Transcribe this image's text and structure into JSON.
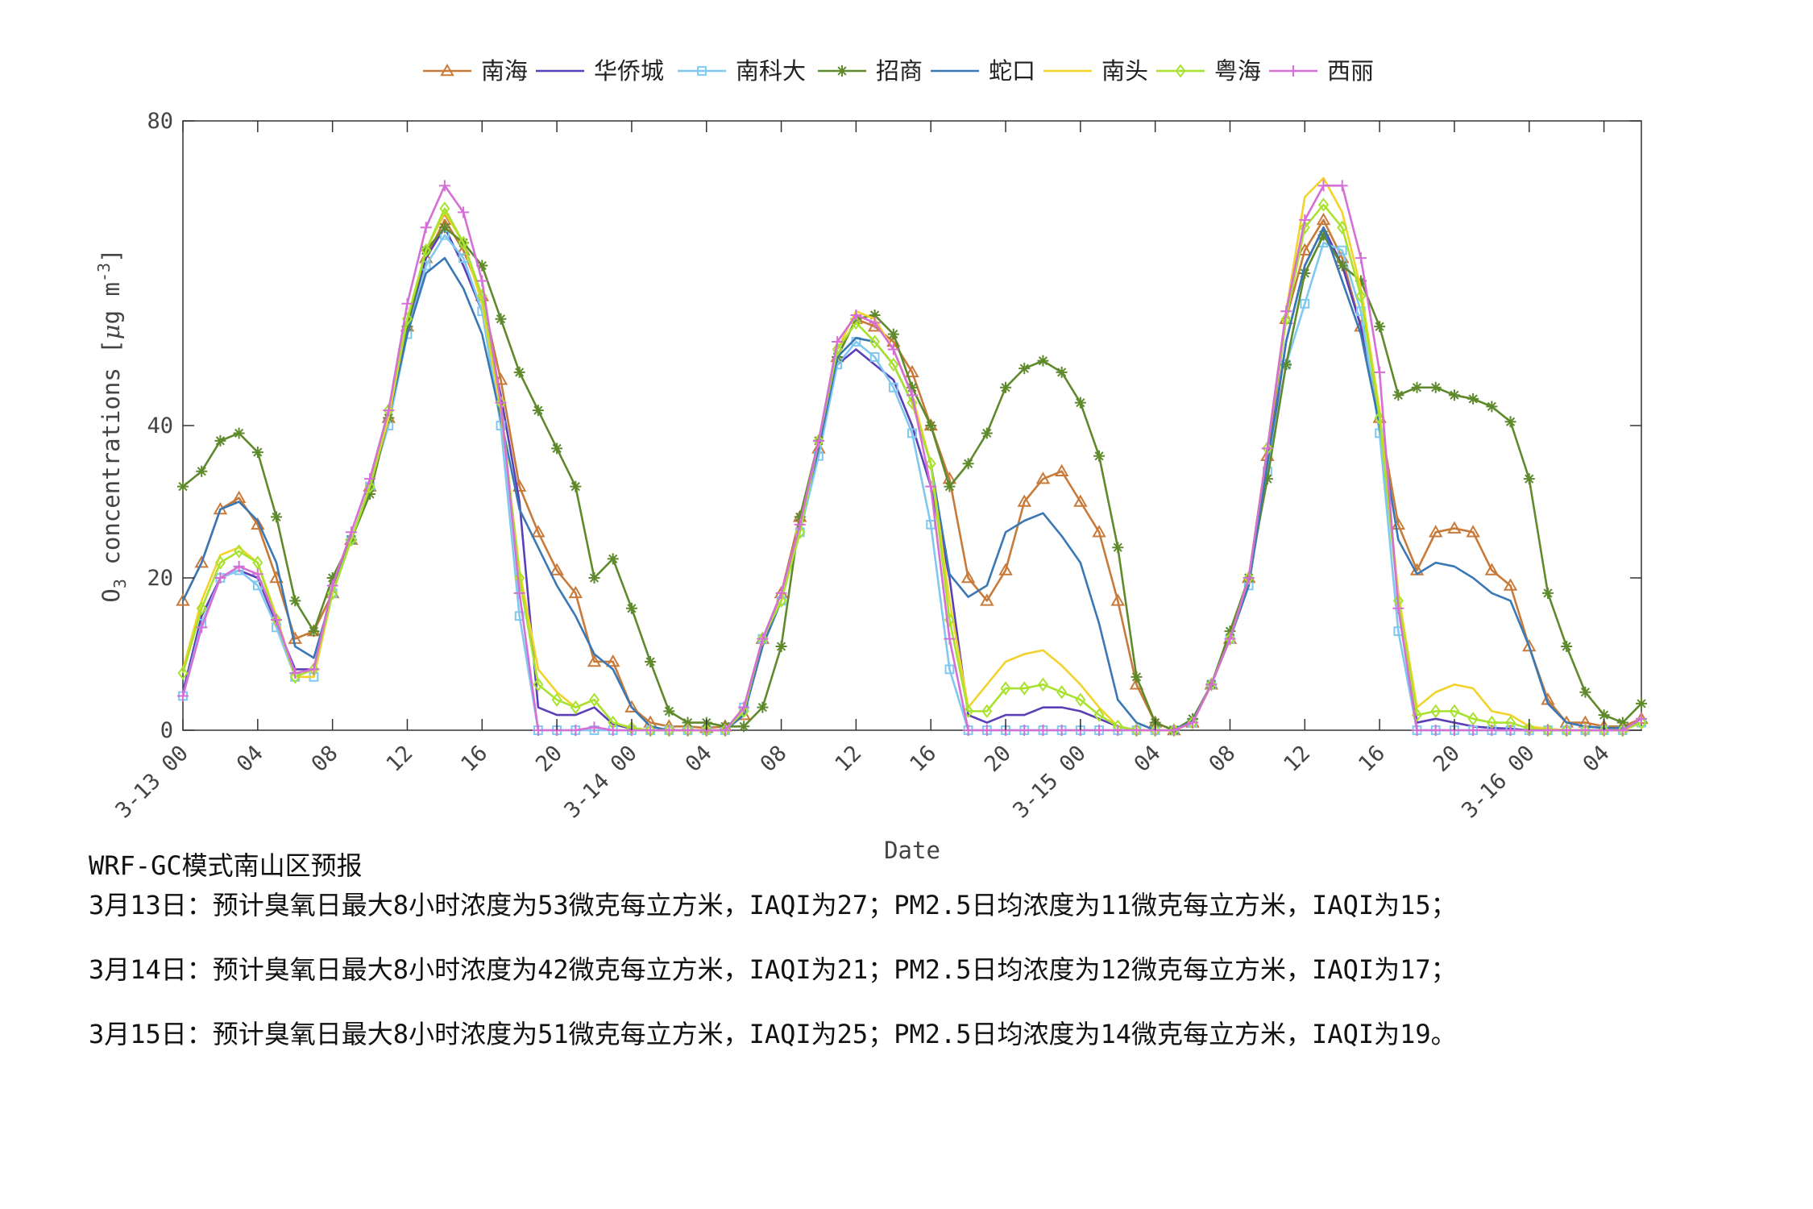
{
  "chart_data": {
    "type": "line",
    "title": "",
    "xlabel": "Date",
    "ylabel": "O3 concentrations [μg m-3]",
    "ylabel_parts": {
      "main": "O",
      "sub": "3",
      "rest": " concentrations [",
      "mu": "μ",
      "unit": "g m",
      "sup": "-3",
      "close": "]"
    },
    "ylim": [
      0,
      80
    ],
    "yticks": [
      0,
      20,
      40,
      80
    ],
    "xlim": [
      0,
      78
    ],
    "xtick_positions": [
      0,
      4,
      8,
      12,
      16,
      20,
      24,
      28,
      32,
      36,
      40,
      44,
      48,
      52,
      56,
      60,
      64,
      68,
      72,
      76
    ],
    "xtick_labels": [
      "3-13 00",
      "04",
      "08",
      "12",
      "16",
      "20",
      "3-14 00",
      "04",
      "08",
      "12",
      "16",
      "20",
      "3-15 00",
      "04",
      "08",
      "12",
      "16",
      "20",
      "3-16 00",
      "04"
    ],
    "legend_position": "top-center",
    "series": [
      {
        "name": "南海",
        "color": "#C87A3A",
        "marker": "triangle",
        "values": [
          17,
          22,
          29,
          30.5,
          27,
          20,
          12,
          13,
          18,
          25,
          32,
          41,
          53,
          62,
          67,
          63,
          57,
          46,
          32,
          26,
          21,
          18,
          9,
          9,
          3,
          1,
          0.5,
          0.5,
          0.3,
          0.5,
          2,
          12,
          18,
          28,
          37,
          49,
          54,
          53,
          51,
          47,
          40,
          33,
          20,
          17,
          21,
          30,
          33,
          34,
          30,
          26,
          17,
          6,
          1,
          0,
          1,
          6,
          12,
          20,
          36,
          54,
          63,
          67,
          62,
          53,
          41,
          27,
          21,
          26,
          26.5,
          26,
          21,
          19,
          11,
          4,
          1,
          1,
          0.5,
          0.5,
          1.5
        ]
      },
      {
        "name": "华侨城",
        "color": "#5B3FB8",
        "marker": "none",
        "values": [
          5,
          15,
          20,
          21,
          20,
          14,
          8,
          8,
          19,
          25,
          32,
          41,
          53,
          62,
          66,
          61,
          55,
          44,
          30,
          3,
          2,
          2,
          3,
          0.8,
          0.2,
          0,
          0,
          0,
          0,
          0,
          2,
          12,
          17,
          27,
          37,
          48,
          50,
          48,
          46,
          40,
          32,
          20,
          2,
          1,
          2,
          2,
          3,
          3,
          2.5,
          1.5,
          0.5,
          0,
          0,
          0,
          1,
          6,
          12,
          19,
          34,
          51,
          61,
          66,
          61,
          53,
          40,
          18,
          1,
          1.5,
          1,
          0.5,
          0.3,
          0.2,
          0,
          0,
          0,
          0,
          0,
          0,
          1
        ]
      },
      {
        "name": "南科大",
        "color": "#7FC8F0",
        "marker": "square",
        "values": [
          4.5,
          14,
          20,
          21,
          19,
          13.5,
          7,
          7,
          18,
          25,
          32,
          40,
          52,
          61,
          65,
          62,
          55,
          40,
          15,
          0,
          0,
          0,
          0,
          0,
          0,
          0,
          0,
          0,
          0,
          0,
          3,
          12,
          17,
          26,
          36,
          48,
          51,
          49,
          45,
          39,
          27,
          8,
          0,
          0,
          0,
          0,
          0,
          0,
          0,
          0,
          0,
          0,
          0,
          0,
          1,
          6,
          12,
          19,
          34,
          48,
          56,
          64,
          63,
          55,
          39,
          13,
          0,
          0,
          0,
          0,
          0,
          0,
          0,
          0,
          0,
          0,
          0,
          0,
          1
        ]
      },
      {
        "name": "招商",
        "color": "#5E8A2C",
        "marker": "star",
        "values": [
          32,
          34,
          38,
          39,
          36.5,
          28,
          17,
          13,
          20,
          25,
          31,
          41,
          53,
          63,
          66,
          64,
          61,
          54,
          47,
          42,
          37,
          32,
          20,
          22.5,
          16,
          9,
          2.5,
          1,
          1,
          0.5,
          0.5,
          3,
          11,
          28,
          38,
          49,
          54,
          54.5,
          52,
          45,
          40,
          32,
          35,
          39,
          45,
          47.5,
          48.5,
          47,
          43,
          36,
          24,
          7,
          1,
          0,
          1.5,
          6,
          13,
          20,
          33,
          48,
          60,
          65,
          61,
          59,
          53,
          44,
          45,
          45,
          44,
          43.5,
          42.5,
          40.5,
          33,
          18,
          11,
          5,
          2,
          1,
          3.5
        ]
      },
      {
        "name": "蛇口",
        "color": "#3A78B5",
        "marker": "none",
        "values": [
          17,
          22,
          29,
          30,
          27.5,
          22,
          11,
          9.5,
          18,
          25,
          32,
          41,
          52,
          60,
          62,
          58,
          52,
          41,
          29,
          24,
          19,
          15,
          10,
          8,
          3,
          0.5,
          0,
          0,
          0,
          0,
          2,
          11,
          17,
          27,
          37,
          49,
          51.5,
          51,
          48,
          43,
          35,
          20.5,
          17.5,
          19,
          26,
          27.5,
          28.5,
          25.5,
          22,
          14,
          4,
          1,
          0,
          0,
          1.2,
          6,
          12,
          19,
          35,
          51,
          61,
          66,
          59,
          52,
          40,
          25,
          20.5,
          22,
          21.5,
          20,
          18,
          17,
          11,
          3.5,
          1,
          0.5,
          0.3,
          0.3,
          1
        ]
      },
      {
        "name": "南头",
        "color": "#F2D22B",
        "marker": "none",
        "values": [
          8,
          17,
          23,
          24,
          22,
          15,
          7,
          7,
          18,
          25,
          32,
          41,
          54,
          63,
          68,
          64,
          56,
          42,
          21,
          8,
          5,
          3,
          4,
          1,
          0.3,
          0,
          0,
          0,
          0,
          0,
          3,
          12,
          17,
          27,
          38,
          50,
          55,
          54,
          50,
          44,
          35,
          17,
          3,
          6,
          9,
          10,
          10.5,
          8.5,
          6,
          3,
          0.5,
          0,
          0,
          0,
          1,
          6,
          12,
          20,
          37,
          55,
          70,
          72.5,
          68,
          58,
          42,
          18,
          3,
          5,
          6,
          5.5,
          2.5,
          2,
          0.5,
          0.2,
          0,
          0,
          0,
          0,
          1
        ]
      },
      {
        "name": "粤海",
        "color": "#A8E22E",
        "marker": "diamond",
        "values": [
          7.5,
          16,
          22,
          23.5,
          22,
          14.5,
          7,
          8,
          18,
          25,
          32,
          42,
          54,
          63,
          68.5,
          64,
          57,
          43,
          20,
          6,
          4,
          3,
          4,
          1,
          0.3,
          0,
          0,
          0,
          0,
          0,
          2.5,
          12,
          17,
          26,
          38,
          50,
          53.5,
          51,
          48,
          43,
          35,
          14.5,
          2.5,
          2.5,
          5.5,
          5.5,
          6,
          5,
          4,
          2,
          0.5,
          0,
          0,
          0,
          1,
          6,
          12,
          20,
          37,
          54,
          66,
          69,
          66,
          57,
          41,
          17,
          2,
          2.5,
          2.5,
          1.5,
          1,
          1,
          0.2,
          0,
          0,
          0,
          0,
          0,
          1
        ]
      },
      {
        "name": "西丽",
        "color": "#D56FD6",
        "marker": "plus",
        "values": [
          4.5,
          13.5,
          20,
          21.5,
          20.5,
          14.5,
          7.5,
          8,
          19,
          26,
          33,
          42,
          56,
          66,
          71.5,
          68,
          59,
          43,
          18,
          0,
          0,
          0,
          0.4,
          0,
          0,
          0,
          0,
          0,
          0,
          0,
          3,
          12,
          18,
          27,
          38,
          51,
          54.5,
          53.5,
          50,
          44,
          32,
          12,
          0,
          0,
          0,
          0,
          0,
          0,
          0,
          0,
          0,
          0,
          0,
          0,
          1,
          6,
          12,
          20,
          37,
          55,
          67,
          71.5,
          71.5,
          62,
          47,
          16,
          0,
          0,
          0,
          0,
          0,
          0,
          0,
          0,
          0,
          0,
          0,
          0,
          1.5
        ]
      }
    ]
  },
  "notes": {
    "title": "WRF-GC模式南山区预报",
    "lines": [
      "3月13日：预计臭氧日最大8小时浓度为53微克每立方米，IAQI为27；PM2.5日均浓度为11微克每立方米，IAQI为15；",
      "3月14日：预计臭氧日最大8小时浓度为42微克每立方米，IAQI为21；PM2.5日均浓度为12微克每立方米，IAQI为17；",
      "3月15日：预计臭氧日最大8小时浓度为51微克每立方米，IAQI为25；PM2.5日均浓度为14微克每立方米，IAQI为19。"
    ]
  }
}
